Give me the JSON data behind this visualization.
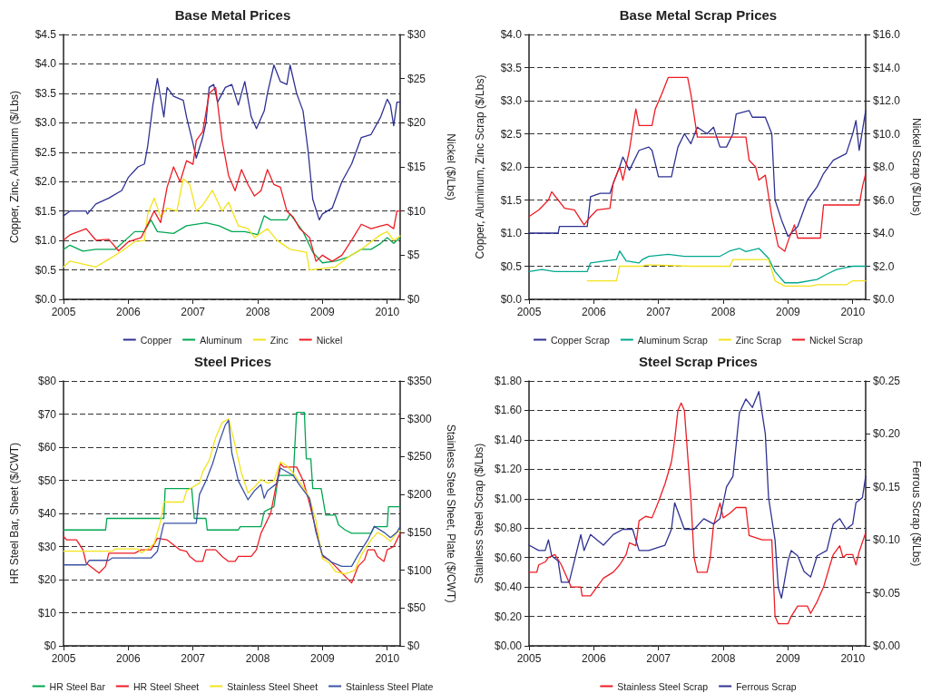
{
  "chart_data": [
    {
      "type": "line",
      "title": "Base Metal Prices",
      "ylabel": "Copper, Zinc, Aluminum ($/Lbs)",
      "y2label": "Nickel ($/Lbs)",
      "xlim": [
        2005,
        2010.2
      ],
      "xticks": [
        2005,
        2006,
        2007,
        2008,
        2009,
        2010
      ],
      "ylim": [
        0,
        4.5
      ],
      "yticks": [
        {
          "value": 0,
          "label": "$0.0"
        },
        {
          "value": 0.5,
          "label": "$0.5"
        },
        {
          "value": 1,
          "label": "$1.0"
        },
        {
          "value": 1.5,
          "label": "$1.5"
        },
        {
          "value": 2,
          "label": "$2.0"
        },
        {
          "value": 2.5,
          "label": "$2.5"
        },
        {
          "value": 3,
          "label": "$3.0"
        },
        {
          "value": 3.5,
          "label": "$3.5"
        },
        {
          "value": 4,
          "label": "$4.0"
        },
        {
          "value": 4.5,
          "label": "$4.5"
        }
      ],
      "y2lim": [
        0,
        30
      ],
      "y2ticks": [
        {
          "value": 0,
          "label": "$0"
        },
        {
          "value": 5,
          "label": "$5"
        },
        {
          "value": 10,
          "label": "$10"
        },
        {
          "value": 15,
          "label": "$15"
        },
        {
          "value": 20,
          "label": "$20"
        },
        {
          "value": 25,
          "label": "$25"
        },
        {
          "value": 30,
          "label": "$30"
        }
      ],
      "grid": "y",
      "legend": "bottom",
      "marker": "none",
      "line_style": "solid",
      "series": [
        {
          "name": "Copper",
          "color": "#2e3192",
          "x": [
            2005,
            2005.1,
            2005.35,
            2005.37,
            2005.5,
            2005.7,
            2005.9,
            2006,
            2006.15,
            2006.25,
            2006.3,
            2006.38,
            2006.45,
            2006.55,
            2006.6,
            2006.7,
            2006.85,
            2006.9,
            2007,
            2007.05,
            2007.15,
            2007.2,
            2007.25,
            2007.32,
            2007.38,
            2007.5,
            2007.6,
            2007.7,
            2007.8,
            2007.9,
            2007.98,
            2008.1,
            2008.15,
            2008.25,
            2008.35,
            2008.45,
            2008.5,
            2008.6,
            2008.7,
            2008.78,
            2008.85,
            2008.95,
            2009,
            2009.15,
            2009.3,
            2009.45,
            2009.6,
            2009.75,
            2009.9,
            2010,
            2010.05,
            2010.1,
            2010.15,
            2010.2
          ],
          "values": [
            1.42,
            1.5,
            1.5,
            1.45,
            1.62,
            1.72,
            1.85,
            2.07,
            2.25,
            2.3,
            2.6,
            3.3,
            3.75,
            3.1,
            3.6,
            3.45,
            3.38,
            3.1,
            2.65,
            2.4,
            2.75,
            3.0,
            3.6,
            3.65,
            3.35,
            3.6,
            3.65,
            3.3,
            3.7,
            3.1,
            2.9,
            3.2,
            3.5,
            3.98,
            3.7,
            3.65,
            3.98,
            3.5,
            3.2,
            2.5,
            1.7,
            1.35,
            1.45,
            1.55,
            2.0,
            2.3,
            2.75,
            2.8,
            3.1,
            3.4,
            3.3,
            2.95,
            3.35,
            3.35
          ]
        },
        {
          "name": "Aluminum",
          "color": "#00a651",
          "x": [
            2005,
            2005.1,
            2005.3,
            2005.5,
            2005.8,
            2006,
            2006.1,
            2006.25,
            2006.35,
            2006.45,
            2006.7,
            2006.9,
            2007.2,
            2007.4,
            2007.6,
            2007.8,
            2008,
            2008.1,
            2008.2,
            2008.45,
            2008.5,
            2008.7,
            2008.85,
            2009,
            2009.2,
            2009.4,
            2009.6,
            2009.75,
            2009.9,
            2010,
            2010.1,
            2010.2
          ],
          "values": [
            0.85,
            0.92,
            0.82,
            0.85,
            0.85,
            1.05,
            1.15,
            1.15,
            1.35,
            1.15,
            1.12,
            1.25,
            1.3,
            1.25,
            1.15,
            1.15,
            1.1,
            1.42,
            1.35,
            1.35,
            1.45,
            1.15,
            0.8,
            0.62,
            0.65,
            0.72,
            0.85,
            0.85,
            0.95,
            1.05,
            0.95,
            1.05
          ]
        },
        {
          "name": "Zinc",
          "color": "#f2e31b",
          "x": [
            2005,
            2005.1,
            2005.3,
            2005.5,
            2005.7,
            2005.9,
            2006.1,
            2006.25,
            2006.3,
            2006.4,
            2006.5,
            2006.6,
            2006.75,
            2006.85,
            2006.95,
            2007.05,
            2007.15,
            2007.3,
            2007.45,
            2007.55,
            2007.7,
            2007.85,
            2007.95,
            2008.15,
            2008.3,
            2008.5,
            2008.75,
            2008.8,
            2009.2,
            2009.4,
            2009.6,
            2009.9,
            2010,
            2010.1,
            2010.2
          ],
          "values": [
            0.55,
            0.65,
            0.6,
            0.55,
            0.68,
            0.82,
            0.98,
            1.0,
            1.45,
            1.72,
            1.4,
            1.55,
            1.5,
            2.05,
            1.95,
            1.5,
            1.6,
            1.85,
            1.5,
            1.65,
            1.25,
            1.2,
            1.05,
            1.2,
            1.0,
            0.85,
            0.8,
            0.5,
            0.55,
            0.72,
            0.85,
            1.1,
            1.15,
            1.0,
            1.08
          ]
        },
        {
          "name": "Nickel",
          "color": "#ed1c24",
          "axis": "y2",
          "x": [
            2005,
            2005.1,
            2005.35,
            2005.5,
            2005.7,
            2005.85,
            2006,
            2006.2,
            2006.4,
            2006.5,
            2006.6,
            2006.7,
            2006.8,
            2006.9,
            2007,
            2007.05,
            2007.15,
            2007.25,
            2007.35,
            2007.45,
            2007.55,
            2007.65,
            2007.75,
            2007.85,
            2007.95,
            2008.05,
            2008.15,
            2008.25,
            2008.35,
            2008.45,
            2008.55,
            2008.65,
            2008.8,
            2008.9,
            2009,
            2009.15,
            2009.3,
            2009.45,
            2009.6,
            2009.75,
            2009.9,
            2010,
            2010.1,
            2010.15,
            2010.2
          ],
          "values": [
            6.7,
            7.3,
            8.0,
            6.7,
            6.8,
            5.5,
            6.5,
            7.0,
            10.0,
            8.7,
            12.7,
            15.0,
            13.3,
            15.7,
            15.3,
            18.0,
            19.0,
            23.3,
            24.0,
            18.0,
            14.0,
            12.3,
            14.7,
            13.0,
            11.7,
            12.3,
            14.7,
            13.0,
            12.7,
            10.0,
            9.3,
            8.0,
            7.0,
            4.3,
            5.0,
            4.3,
            5.0,
            6.7,
            8.5,
            8.0,
            8.3,
            8.5,
            8.0,
            10.0,
            10.0
          ]
        }
      ]
    },
    {
      "type": "line",
      "title": "Base Metal Scrap Prices",
      "ylabel": "Copper, Aluminum, Zinc Scrap ($/Lbs)",
      "y2label": "Nickel Scrap ($/Lbs)",
      "xlim": [
        2005,
        2010.2
      ],
      "xticks": [
        2005,
        2006,
        2007,
        2008,
        2009,
        2010
      ],
      "ylim": [
        0,
        4
      ],
      "yticks": [
        {
          "value": 0,
          "label": "$0.0"
        },
        {
          "value": 0.5,
          "label": "$0.5"
        },
        {
          "value": 1,
          "label": "$1.0"
        },
        {
          "value": 1.5,
          "label": "$1.5"
        },
        {
          "value": 2,
          "label": "$2.0"
        },
        {
          "value": 2.5,
          "label": "$2.5"
        },
        {
          "value": 3,
          "label": "$3.0"
        },
        {
          "value": 3.5,
          "label": "$3.5"
        },
        {
          "value": 4,
          "label": "$4.0"
        }
      ],
      "y2lim": [
        0,
        16
      ],
      "y2ticks": [
        {
          "value": 0,
          "label": "$0.0"
        },
        {
          "value": 2,
          "label": "$2.0"
        },
        {
          "value": 4,
          "label": "$4.0"
        },
        {
          "value": 6,
          "label": "$6.0"
        },
        {
          "value": 8,
          "label": "$8.0"
        },
        {
          "value": 10,
          "label": "$10.0"
        },
        {
          "value": 12,
          "label": "$12.0"
        },
        {
          "value": 14,
          "label": "$14.0"
        },
        {
          "value": 16,
          "label": "$16.0"
        }
      ],
      "grid": "y",
      "legend": "bottom",
      "marker": "none",
      "line_style": "solid",
      "series": [
        {
          "name": "Copper Scrap",
          "color": "#2e3192",
          "x": [
            2005,
            2005.45,
            2005.47,
            2005.9,
            2005.95,
            2006.1,
            2006.25,
            2006.3,
            2006.4,
            2006.45,
            2006.55,
            2006.7,
            2006.85,
            2006.9,
            2007,
            2007.2,
            2007.3,
            2007.4,
            2007.5,
            2007.6,
            2007.75,
            2007.85,
            2007.95,
            2008.05,
            2008.15,
            2008.2,
            2008.4,
            2008.45,
            2008.65,
            2008.75,
            2008.8,
            2008.9,
            2009,
            2009.15,
            2009.3,
            2009.45,
            2009.55,
            2009.7,
            2009.9,
            2010,
            2010.05,
            2010.1,
            2010.15,
            2010.2
          ],
          "values": [
            1.0,
            1.0,
            1.1,
            1.1,
            1.55,
            1.6,
            1.6,
            1.75,
            2.0,
            2.15,
            1.95,
            2.25,
            2.3,
            2.25,
            1.85,
            1.85,
            2.3,
            2.5,
            2.35,
            2.6,
            2.5,
            2.6,
            2.3,
            2.3,
            2.5,
            2.8,
            2.85,
            2.75,
            2.75,
            2.5,
            1.5,
            1.2,
            0.95,
            1.1,
            1.5,
            1.7,
            1.9,
            2.1,
            2.2,
            2.5,
            2.7,
            2.25,
            2.55,
            2.85
          ]
        },
        {
          "name": "Aluminum Scrap",
          "color": "#00a88f",
          "x": [
            2005,
            2005.2,
            2005.4,
            2005.9,
            2005.95,
            2006.1,
            2006.35,
            2006.4,
            2006.5,
            2006.7,
            2006.75,
            2006.85,
            2007.15,
            2007.4,
            2007.95,
            2008.1,
            2008.25,
            2008.35,
            2008.55,
            2008.7,
            2008.8,
            2008.95,
            2009.15,
            2009.45,
            2009.6,
            2009.75,
            2009.9,
            2010,
            2010.2
          ],
          "values": [
            0.42,
            0.45,
            0.42,
            0.42,
            0.55,
            0.57,
            0.6,
            0.73,
            0.58,
            0.55,
            0.6,
            0.65,
            0.68,
            0.65,
            0.65,
            0.73,
            0.77,
            0.72,
            0.77,
            0.62,
            0.42,
            0.25,
            0.25,
            0.3,
            0.38,
            0.45,
            0.48,
            0.5,
            0.5
          ]
        },
        {
          "name": "Zinc Scrap",
          "color": "#f2e31b",
          "x": [
            2005.9,
            2006.35,
            2006.4,
            2006.75,
            2006.8,
            2006.95,
            2007.5,
            2008.1,
            2008.15,
            2008.7,
            2008.8,
            2008.95,
            2009.35,
            2009.45,
            2009.9,
            2010,
            2010.2
          ],
          "values": [
            0.28,
            0.28,
            0.5,
            0.5,
            0.52,
            0.52,
            0.5,
            0.5,
            0.6,
            0.6,
            0.28,
            0.2,
            0.2,
            0.22,
            0.22,
            0.28,
            0.28
          ]
        },
        {
          "name": "Nickel Scrap",
          "color": "#ed1c24",
          "axis": "y2",
          "x": [
            2005,
            2005.15,
            2005.3,
            2005.35,
            2005.45,
            2005.55,
            2005.7,
            2005.85,
            2005.95,
            2006.05,
            2006.25,
            2006.3,
            2006.4,
            2006.45,
            2006.55,
            2006.65,
            2006.7,
            2006.9,
            2006.95,
            2007.05,
            2007.15,
            2007.45,
            2007.5,
            2007.6,
            2008.35,
            2008.4,
            2008.5,
            2008.55,
            2008.65,
            2008.75,
            2008.85,
            2008.95,
            2009,
            2009.1,
            2009.15,
            2009.5,
            2009.55,
            2010.1,
            2010.15,
            2010.2
          ],
          "values": [
            5.0,
            5.4,
            6.0,
            6.5,
            6.0,
            5.5,
            5.4,
            4.5,
            5.0,
            5.4,
            5.5,
            7.0,
            8.0,
            7.2,
            9.0,
            11.5,
            10.5,
            10.5,
            11.5,
            12.4,
            13.4,
            13.4,
            12.4,
            9.8,
            9.8,
            8.4,
            8.0,
            7.2,
            7.5,
            5.0,
            3.2,
            2.9,
            3.5,
            4.5,
            3.7,
            3.7,
            5.7,
            5.7,
            6.8,
            7.6
          ]
        }
      ]
    },
    {
      "type": "line",
      "title": "Steel Prices",
      "ylabel": "HR Steel Bar, Sheet ($/CWT)",
      "y2label": "Stainless Steel Sheet, Plate ($/CWT)",
      "xlim": [
        2005,
        2010.2
      ],
      "xticks": [
        2005,
        2006,
        2007,
        2008,
        2009,
        2010
      ],
      "ylim": [
        0,
        80
      ],
      "yticks": [
        {
          "value": 0,
          "label": "$0"
        },
        {
          "value": 10,
          "label": "$10"
        },
        {
          "value": 20,
          "label": "$20"
        },
        {
          "value": 30,
          "label": "$30"
        },
        {
          "value": 40,
          "label": "$40"
        },
        {
          "value": 50,
          "label": "$50"
        },
        {
          "value": 60,
          "label": "$60"
        },
        {
          "value": 70,
          "label": "$70"
        },
        {
          "value": 80,
          "label": "$80"
        }
      ],
      "y2lim": [
        0,
        350
      ],
      "y2ticks": [
        {
          "value": 0,
          "label": "$0"
        },
        {
          "value": 50,
          "label": "$50"
        },
        {
          "value": 100,
          "label": "$100"
        },
        {
          "value": 150,
          "label": "$150"
        },
        {
          "value": 200,
          "label": "$200"
        },
        {
          "value": 250,
          "label": "$250"
        },
        {
          "value": 300,
          "label": "$300"
        },
        {
          "value": 350,
          "label": "$350"
        }
      ],
      "grid": "y",
      "legend": "bottom",
      "marker": "none",
      "line_style": "solid",
      "series": [
        {
          "name": "HR Steel Bar",
          "color": "#00a651",
          "x": [
            2005,
            2005.65,
            2005.67,
            2006.55,
            2006.57,
            2006.98,
            2007.02,
            2007.2,
            2007.22,
            2007.7,
            2007.73,
            2008.05,
            2008.1,
            2008.25,
            2008.32,
            2008.55,
            2008.6,
            2008.72,
            2008.75,
            2008.82,
            2008.85,
            2008.98,
            2009.05,
            2009.2,
            2009.25,
            2009.35,
            2009.45,
            2009.75,
            2009.8,
            2010,
            2010.02,
            2010.2
          ],
          "values": [
            35,
            35,
            38.5,
            38.5,
            47.5,
            47.5,
            38.5,
            38.5,
            35,
            35,
            36,
            36,
            40.5,
            42,
            51.5,
            51.5,
            70.5,
            70.5,
            56.5,
            56.5,
            47.5,
            47.5,
            39.5,
            39.5,
            36.5,
            35,
            34,
            34,
            36,
            36,
            42,
            42
          ]
        },
        {
          "name": "HR Steel Sheet",
          "color": "#ed1c24",
          "x": [
            2005,
            2005.05,
            2005.2,
            2005.3,
            2005.35,
            2005.55,
            2005.65,
            2005.7,
            2006.1,
            2006.2,
            2006.35,
            2006.45,
            2006.6,
            2006.8,
            2006.9,
            2006.95,
            2007.05,
            2007.15,
            2007.2,
            2007.35,
            2007.45,
            2007.55,
            2007.65,
            2007.7,
            2007.9,
            2007.98,
            2008.05,
            2008.15,
            2008.2,
            2008.3,
            2008.35,
            2008.4,
            2008.6,
            2008.7,
            2008.8,
            2008.9,
            2009,
            2009.1,
            2009.2,
            2009.3,
            2009.45,
            2009.55,
            2009.65,
            2009.7,
            2009.8,
            2009.85,
            2009.95,
            2010,
            2010.1,
            2010.2
          ],
          "values": [
            33,
            32,
            32,
            29,
            25,
            22,
            24,
            28,
            28,
            29,
            29,
            32.5,
            32,
            29,
            28.5,
            27,
            25.5,
            25.5,
            29,
            29,
            27,
            25.5,
            25.5,
            27,
            27,
            29,
            34,
            38,
            40,
            50,
            55,
            54,
            54,
            50,
            43,
            35,
            27,
            26,
            24,
            22,
            19,
            24,
            26,
            29,
            29,
            27,
            25.5,
            29,
            30,
            34
          ]
        },
        {
          "name": "Stainless Steel Sheet",
          "color": "#f2e31b",
          "axis": "y2",
          "x": [
            2005,
            2005.75,
            2005.8,
            2006.15,
            2006.2,
            2006.3,
            2006.4,
            2006.5,
            2006.55,
            2006.85,
            2006.9,
            2007,
            2007.1,
            2007.15,
            2007.25,
            2007.35,
            2007.45,
            2007.55,
            2007.65,
            2007.75,
            2007.85,
            2007.95,
            2008.05,
            2008.15,
            2008.25,
            2008.35,
            2008.45,
            2008.55,
            2008.7,
            2008.8,
            2008.9,
            2009,
            2009.1,
            2009.2,
            2009.35,
            2009.5,
            2009.6,
            2009.75,
            2009.85,
            2009.95,
            2010.05,
            2010.15,
            2010.2
          ],
          "values": [
            125,
            125,
            128,
            128,
            123,
            128,
            135,
            165,
            190,
            190,
            205,
            210,
            215,
            230,
            245,
            275,
            295,
            300,
            265,
            228,
            202,
            210,
            220,
            215,
            218,
            243,
            238,
            228,
            210,
            195,
            165,
            115,
            110,
            98,
            95,
            100,
            120,
            140,
            150,
            145,
            138,
            150,
            152
          ]
        },
        {
          "name": "Stainless Steel Plate",
          "color": "#3a53a4",
          "axis": "y2",
          "x": [
            2005,
            2005.35,
            2005.4,
            2005.7,
            2005.75,
            2006.35,
            2006.45,
            2006.55,
            2007.05,
            2007.1,
            2007.2,
            2007.3,
            2007.4,
            2007.5,
            2007.55,
            2007.6,
            2007.7,
            2007.85,
            2007.95,
            2008.05,
            2008.1,
            2008.15,
            2008.3,
            2008.35,
            2008.55,
            2008.65,
            2008.8,
            2008.9,
            2009,
            2009.15,
            2009.3,
            2009.45,
            2009.55,
            2009.7,
            2009.8,
            2009.95,
            2010.05,
            2010.15,
            2010.2
          ],
          "values": [
            107,
            107,
            113,
            113,
            116,
            116,
            125,
            162,
            162,
            200,
            218,
            240,
            268,
            292,
            298,
            255,
            218,
            193,
            205,
            213,
            195,
            205,
            215,
            235,
            225,
            212,
            195,
            150,
            120,
            110,
            105,
            105,
            120,
            140,
            158,
            150,
            143,
            150,
            158
          ]
        }
      ]
    },
    {
      "type": "line",
      "title": "Steel Scrap Prices",
      "ylabel": "Stainless Steel Scrap ($/Lbs)",
      "y2label": "Ferrous Scrap ($/Lbs)",
      "xlim": [
        2005,
        2010.2
      ],
      "xticks": [
        2005,
        2006,
        2007,
        2008,
        2009,
        2010
      ],
      "ylim": [
        0,
        1.8
      ],
      "yticks": [
        {
          "value": 0,
          "label": "$0.00"
        },
        {
          "value": 0.2,
          "label": "$0.20"
        },
        {
          "value": 0.4,
          "label": "$0.40"
        },
        {
          "value": 0.6,
          "label": "$0.60"
        },
        {
          "value": 0.8,
          "label": "$0.80"
        },
        {
          "value": 1,
          "label": "$1.00"
        },
        {
          "value": 1.2,
          "label": "$1.20"
        },
        {
          "value": 1.4,
          "label": "$1.40"
        },
        {
          "value": 1.6,
          "label": "$1.60"
        },
        {
          "value": 1.8,
          "label": "$1.80"
        }
      ],
      "y2lim": [
        0,
        0.25
      ],
      "y2ticks": [
        {
          "value": 0,
          "label": "$0.00"
        },
        {
          "value": 0.05,
          "label": "$0.05"
        },
        {
          "value": 0.1,
          "label": "$0.10"
        },
        {
          "value": 0.15,
          "label": "$0.15"
        },
        {
          "value": 0.2,
          "label": "$0.20"
        },
        {
          "value": 0.25,
          "label": "$0.25"
        }
      ],
      "grid": "y",
      "legend": "bottom",
      "marker": "none",
      "line_style": "solid",
      "series": [
        {
          "name": "Stainless Steel Scrap",
          "color": "#ed1c24",
          "x": [
            2005,
            2005.12,
            2005.15,
            2005.25,
            2005.3,
            2005.4,
            2005.5,
            2005.6,
            2005.65,
            2005.8,
            2005.82,
            2005.95,
            2006.05,
            2006.15,
            2006.3,
            2006.4,
            2006.5,
            2006.55,
            2006.65,
            2006.7,
            2006.8,
            2006.9,
            2007,
            2007.1,
            2007.2,
            2007.25,
            2007.3,
            2007.35,
            2007.4,
            2007.5,
            2007.55,
            2007.6,
            2007.75,
            2007.8,
            2007.85,
            2007.95,
            2008,
            2008.1,
            2008.2,
            2008.35,
            2008.4,
            2008.6,
            2008.75,
            2008.8,
            2008.85,
            2009,
            2009.05,
            2009.15,
            2009.3,
            2009.35,
            2009.45,
            2009.55,
            2009.65,
            2009.7,
            2009.8,
            2009.85,
            2009.9,
            2010,
            2010.05,
            2010.1,
            2010.2
          ],
          "values": [
            0.5,
            0.5,
            0.55,
            0.57,
            0.6,
            0.62,
            0.55,
            0.45,
            0.4,
            0.4,
            0.34,
            0.34,
            0.4,
            0.46,
            0.5,
            0.55,
            0.62,
            0.7,
            0.68,
            0.85,
            0.88,
            0.87,
            0.98,
            1.1,
            1.25,
            1.4,
            1.6,
            1.65,
            1.6,
            1.0,
            0.6,
            0.5,
            0.5,
            0.6,
            0.82,
            0.97,
            0.87,
            0.9,
            0.94,
            0.94,
            0.75,
            0.72,
            0.72,
            0.2,
            0.15,
            0.15,
            0.2,
            0.27,
            0.27,
            0.22,
            0.3,
            0.4,
            0.55,
            0.62,
            0.68,
            0.6,
            0.62,
            0.62,
            0.55,
            0.64,
            0.77
          ]
        },
        {
          "name": "Ferrous Scrap",
          "color": "#2e3192",
          "axis": "y2",
          "x": [
            2005,
            2005.15,
            2005.25,
            2005.3,
            2005.35,
            2005.45,
            2005.5,
            2005.62,
            2005.7,
            2005.8,
            2005.85,
            2005.95,
            2006.05,
            2006.15,
            2006.3,
            2006.45,
            2006.6,
            2006.7,
            2006.85,
            2007,
            2007.1,
            2007.2,
            2007.25,
            2007.4,
            2007.55,
            2007.7,
            2007.85,
            2007.95,
            2008.05,
            2008.15,
            2008.25,
            2008.35,
            2008.45,
            2008.55,
            2008.65,
            2008.7,
            2008.8,
            2008.85,
            2008.9,
            2009,
            2009.05,
            2009.15,
            2009.25,
            2009.35,
            2009.45,
            2009.6,
            2009.7,
            2009.8,
            2009.9,
            2010,
            2010.05,
            2010.15,
            2010.2
          ],
          "values": [
            0.095,
            0.09,
            0.09,
            0.1,
            0.085,
            0.08,
            0.06,
            0.06,
            0.08,
            0.105,
            0.09,
            0.105,
            0.1,
            0.095,
            0.105,
            0.11,
            0.11,
            0.09,
            0.09,
            0.093,
            0.095,
            0.11,
            0.135,
            0.11,
            0.11,
            0.12,
            0.115,
            0.12,
            0.15,
            0.16,
            0.22,
            0.233,
            0.225,
            0.24,
            0.2,
            0.14,
            0.1,
            0.055,
            0.045,
            0.08,
            0.09,
            0.085,
            0.07,
            0.065,
            0.085,
            0.09,
            0.115,
            0.12,
            0.11,
            0.115,
            0.135,
            0.14,
            0.16
          ]
        }
      ]
    }
  ]
}
